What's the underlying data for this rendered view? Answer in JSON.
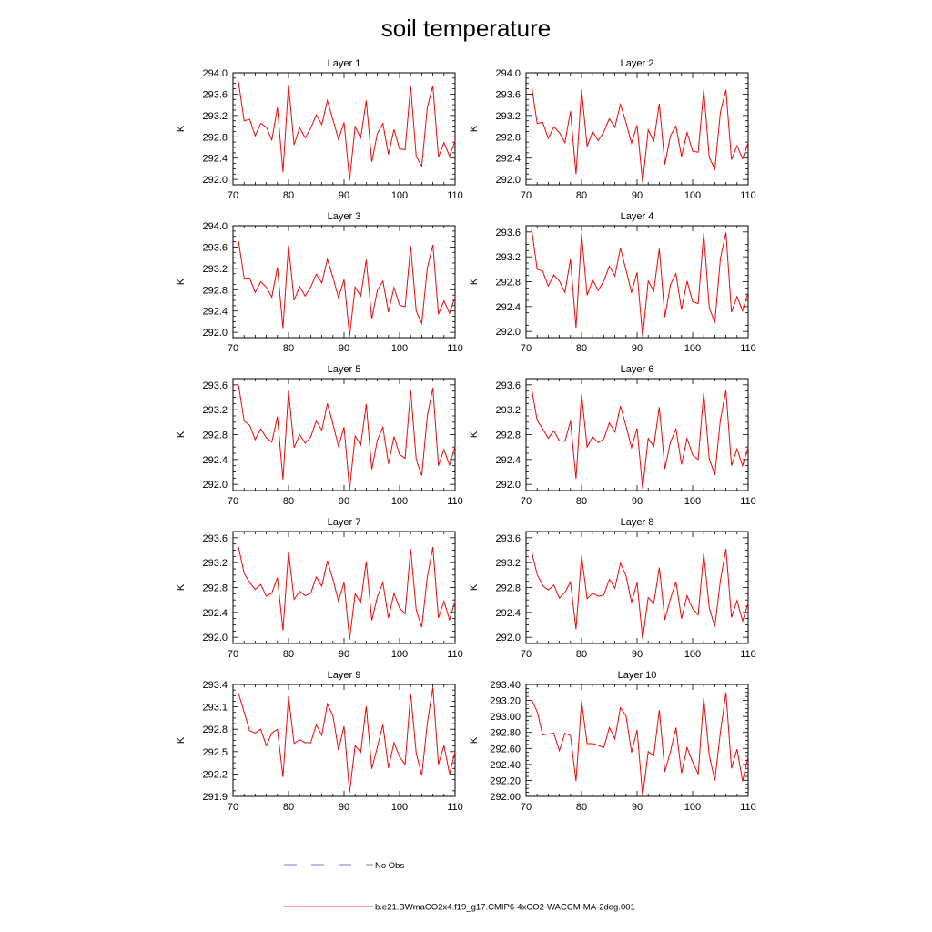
{
  "title": "soil temperature",
  "legend": {
    "placement": "bottom",
    "entries": [
      {
        "label": "No Obs",
        "color": "#7a7acc",
        "style": "dashed"
      },
      {
        "label": "b.e21.BWmaCO2x4.f19_g17.CMIP6-4xCO2-WACCM-MA-2deg.001",
        "color": "#ff0000",
        "style": "solid"
      }
    ]
  },
  "chart_data": [
    {
      "type": "line",
      "title": "Layer 1",
      "ylabel": "K",
      "xlim": [
        70,
        110
      ],
      "ylim": [
        291.9,
        294.0
      ],
      "xticks": [
        70,
        80,
        90,
        100,
        110
      ],
      "yticks": [
        292.0,
        292.4,
        292.8,
        293.2,
        293.6,
        294.0
      ],
      "ytick_decimals": 1,
      "x": [
        71,
        72,
        73,
        74,
        75,
        76,
        77,
        78,
        79,
        80,
        81,
        82,
        83,
        84,
        85,
        86,
        87,
        88,
        89,
        90,
        91,
        92,
        93,
        94,
        95,
        96,
        97,
        98,
        99,
        100,
        101,
        102,
        103,
        104,
        105,
        106,
        107,
        108,
        109,
        110
      ],
      "series": [
        {
          "name": "b.e21.BWmaCO2x4.f19_g17.CMIP6-4xCO2-WACCM-MA-2deg.001",
          "color": "#ff0000",
          "values": [
            293.82,
            293.1,
            293.13,
            292.82,
            293.05,
            292.98,
            292.74,
            293.35,
            292.14,
            293.78,
            292.65,
            292.97,
            292.78,
            292.96,
            293.21,
            293.03,
            293.48,
            293.12,
            292.75,
            293.07,
            291.98,
            292.99,
            292.78,
            293.48,
            292.33,
            292.86,
            293.05,
            292.47,
            292.94,
            292.57,
            292.56,
            293.76,
            292.43,
            292.25,
            293.35,
            293.76,
            292.42,
            292.69,
            292.44,
            292.72
          ]
        }
      ]
    },
    {
      "type": "line",
      "title": "Layer 2",
      "ylabel": "K",
      "xlim": [
        70,
        110
      ],
      "ylim": [
        291.9,
        294.0
      ],
      "xticks": [
        70,
        80,
        90,
        100,
        110
      ],
      "yticks": [
        292.0,
        292.4,
        292.8,
        293.2,
        293.6,
        294.0
      ],
      "ytick_decimals": 1,
      "x": [
        71,
        72,
        73,
        74,
        75,
        76,
        77,
        78,
        79,
        80,
        81,
        82,
        83,
        84,
        85,
        86,
        87,
        88,
        89,
        90,
        91,
        92,
        93,
        94,
        95,
        96,
        97,
        98,
        99,
        100,
        101,
        102,
        103,
        104,
        105,
        106,
        107,
        108,
        109,
        110
      ],
      "series": [
        {
          "name": "b.e21.BWmaCO2x4.f19_g17.CMIP6-4xCO2-WACCM-MA-2deg.001",
          "color": "#ff0000",
          "values": [
            293.76,
            293.05,
            293.07,
            292.77,
            292.99,
            292.88,
            292.69,
            293.28,
            292.1,
            293.69,
            292.62,
            292.9,
            292.73,
            292.89,
            293.14,
            292.98,
            293.41,
            293.07,
            292.68,
            293.02,
            291.94,
            292.93,
            292.72,
            293.42,
            292.28,
            292.82,
            293.0,
            292.43,
            292.88,
            292.53,
            292.51,
            293.68,
            292.41,
            292.19,
            293.26,
            293.68,
            292.37,
            292.63,
            292.39,
            292.69
          ]
        }
      ]
    },
    {
      "type": "line",
      "title": "Layer 3",
      "ylabel": "K",
      "xlim": [
        70,
        110
      ],
      "ylim": [
        291.9,
        294.0
      ],
      "xticks": [
        70,
        80,
        90,
        100,
        110
      ],
      "yticks": [
        292.0,
        292.4,
        292.8,
        293.2,
        293.6,
        294.0
      ],
      "ytick_decimals": 1,
      "x": [
        71,
        72,
        73,
        74,
        75,
        76,
        77,
        78,
        79,
        80,
        81,
        82,
        83,
        84,
        85,
        86,
        87,
        88,
        89,
        90,
        91,
        92,
        93,
        94,
        95,
        96,
        97,
        98,
        99,
        100,
        101,
        102,
        103,
        104,
        105,
        106,
        107,
        108,
        109,
        110
      ],
      "series": [
        {
          "name": "b.e21.BWmaCO2x4.f19_g17.CMIP6-4xCO2-WACCM-MA-2deg.001",
          "color": "#ff0000",
          "values": [
            293.71,
            293.02,
            293.02,
            292.75,
            292.95,
            292.85,
            292.66,
            293.22,
            292.08,
            293.63,
            292.6,
            292.86,
            292.68,
            292.85,
            293.09,
            292.93,
            293.37,
            293.03,
            292.65,
            292.99,
            291.92,
            292.85,
            292.68,
            293.36,
            292.25,
            292.79,
            292.96,
            292.38,
            292.84,
            292.51,
            292.48,
            293.62,
            292.4,
            292.17,
            293.21,
            293.64,
            292.34,
            292.59,
            292.36,
            292.66
          ]
        }
      ]
    },
    {
      "type": "line",
      "title": "Layer 4",
      "ylabel": "K",
      "xlim": [
        70,
        110
      ],
      "ylim": [
        291.9,
        293.7
      ],
      "xticks": [
        70,
        80,
        90,
        100,
        110
      ],
      "yticks": [
        292.0,
        292.4,
        292.8,
        293.2,
        293.6
      ],
      "ytick_decimals": 1,
      "x": [
        71,
        72,
        73,
        74,
        75,
        76,
        77,
        78,
        79,
        80,
        81,
        82,
        83,
        84,
        85,
        86,
        87,
        88,
        89,
        90,
        91,
        92,
        93,
        94,
        95,
        96,
        97,
        98,
        99,
        100,
        101,
        102,
        103,
        104,
        105,
        106,
        107,
        108,
        109,
        110
      ],
      "series": [
        {
          "name": "b.e21.BWmaCO2x4.f19_g17.CMIP6-4xCO2-WACCM-MA-2deg.001",
          "color": "#ff0000",
          "values": [
            293.65,
            293.0,
            292.97,
            292.73,
            292.91,
            292.81,
            292.63,
            293.16,
            292.06,
            293.57,
            292.58,
            292.83,
            292.66,
            292.81,
            293.05,
            292.89,
            293.34,
            292.99,
            292.63,
            292.95,
            291.91,
            292.81,
            292.65,
            293.33,
            292.23,
            292.75,
            292.93,
            292.35,
            292.81,
            292.48,
            292.45,
            293.58,
            292.38,
            292.14,
            293.17,
            293.59,
            292.31,
            292.56,
            292.33,
            292.63
          ]
        }
      ]
    },
    {
      "type": "line",
      "title": "Layer 5",
      "ylabel": "K",
      "xlim": [
        70,
        110
      ],
      "ylim": [
        291.9,
        293.7
      ],
      "xticks": [
        70,
        80,
        90,
        100,
        110
      ],
      "yticks": [
        292.0,
        292.4,
        292.8,
        293.2,
        293.6
      ],
      "ytick_decimals": 1,
      "x": [
        71,
        72,
        73,
        74,
        75,
        76,
        77,
        78,
        79,
        80,
        81,
        82,
        83,
        84,
        85,
        86,
        87,
        88,
        89,
        90,
        91,
        92,
        93,
        94,
        95,
        96,
        97,
        98,
        99,
        100,
        101,
        102,
        103,
        104,
        105,
        106,
        107,
        108,
        109,
        110
      ],
      "series": [
        {
          "name": "b.e21.BWmaCO2x4.f19_g17.CMIP6-4xCO2-WACCM-MA-2deg.001",
          "color": "#ff0000",
          "values": [
            293.6,
            293.02,
            292.95,
            292.72,
            292.89,
            292.75,
            292.68,
            293.09,
            292.08,
            293.51,
            292.59,
            292.8,
            292.66,
            292.76,
            293.02,
            292.87,
            293.3,
            292.97,
            292.61,
            292.92,
            291.91,
            292.78,
            292.63,
            293.29,
            292.24,
            292.71,
            292.92,
            292.33,
            292.77,
            292.48,
            292.42,
            293.52,
            292.4,
            292.14,
            293.1,
            293.55,
            292.3,
            292.56,
            292.31,
            292.61
          ]
        }
      ]
    },
    {
      "type": "line",
      "title": "Layer 6",
      "ylabel": "K",
      "xlim": [
        70,
        110
      ],
      "ylim": [
        291.9,
        293.7
      ],
      "xticks": [
        70,
        80,
        90,
        100,
        110
      ],
      "yticks": [
        292.0,
        292.4,
        292.8,
        293.2,
        293.6
      ],
      "ytick_decimals": 1,
      "x": [
        71,
        72,
        73,
        74,
        75,
        76,
        77,
        78,
        79,
        80,
        81,
        82,
        83,
        84,
        85,
        86,
        87,
        88,
        89,
        90,
        91,
        92,
        93,
        94,
        95,
        96,
        97,
        98,
        99,
        100,
        101,
        102,
        103,
        104,
        105,
        106,
        107,
        108,
        109,
        110
      ],
      "series": [
        {
          "name": "b.e21.BWmaCO2x4.f19_g17.CMIP6-4xCO2-WACCM-MA-2deg.001",
          "color": "#ff0000",
          "values": [
            293.54,
            293.03,
            292.89,
            292.74,
            292.86,
            292.7,
            292.69,
            293.02,
            292.09,
            293.45,
            292.6,
            292.77,
            292.67,
            292.73,
            292.99,
            292.84,
            293.26,
            292.94,
            292.59,
            292.9,
            291.93,
            292.74,
            292.61,
            293.24,
            292.25,
            292.68,
            292.89,
            292.32,
            292.74,
            292.47,
            292.4,
            293.47,
            292.41,
            292.15,
            293.04,
            293.51,
            292.3,
            292.57,
            292.3,
            292.6
          ]
        }
      ]
    },
    {
      "type": "line",
      "title": "Layer 7",
      "ylabel": "K",
      "xlim": [
        70,
        110
      ],
      "ylim": [
        291.9,
        293.7
      ],
      "xticks": [
        70,
        80,
        90,
        100,
        110
      ],
      "yticks": [
        292.0,
        292.4,
        292.8,
        293.2,
        293.6
      ],
      "ytick_decimals": 1,
      "x": [
        71,
        72,
        73,
        74,
        75,
        76,
        77,
        78,
        79,
        80,
        81,
        82,
        83,
        84,
        85,
        86,
        87,
        88,
        89,
        90,
        91,
        92,
        93,
        94,
        95,
        96,
        97,
        98,
        99,
        100,
        101,
        102,
        103,
        104,
        105,
        106,
        107,
        108,
        109,
        110
      ],
      "series": [
        {
          "name": "b.e21.BWmaCO2x4.f19_g17.CMIP6-4xCO2-WACCM-MA-2deg.001",
          "color": "#ff0000",
          "values": [
            293.45,
            293.03,
            292.88,
            292.77,
            292.85,
            292.66,
            292.71,
            292.96,
            292.11,
            293.38,
            292.61,
            292.74,
            292.67,
            292.71,
            292.97,
            292.82,
            293.23,
            292.93,
            292.58,
            292.88,
            291.96,
            292.7,
            292.56,
            293.22,
            292.27,
            292.65,
            292.88,
            292.31,
            292.71,
            292.47,
            292.38,
            293.42,
            292.44,
            292.16,
            292.97,
            293.45,
            292.31,
            292.58,
            292.28,
            292.58
          ]
        }
      ]
    },
    {
      "type": "line",
      "title": "Layer 8",
      "ylabel": "K",
      "xlim": [
        70,
        110
      ],
      "ylim": [
        291.9,
        293.7
      ],
      "xticks": [
        70,
        80,
        90,
        100,
        110
      ],
      "yticks": [
        292.0,
        292.4,
        292.8,
        293.2,
        293.6
      ],
      "ytick_decimals": 1,
      "x": [
        71,
        72,
        73,
        74,
        75,
        76,
        77,
        78,
        79,
        80,
        81,
        82,
        83,
        84,
        85,
        86,
        87,
        88,
        89,
        90,
        91,
        92,
        93,
        94,
        95,
        96,
        97,
        98,
        99,
        100,
        101,
        102,
        103,
        104,
        105,
        106,
        107,
        108,
        109,
        110
      ],
      "series": [
        {
          "name": "b.e21.BWmaCO2x4.f19_g17.CMIP6-4xCO2-WACCM-MA-2deg.001",
          "color": "#ff0000",
          "values": [
            293.38,
            293.01,
            292.83,
            292.76,
            292.84,
            292.63,
            292.72,
            292.89,
            292.13,
            293.31,
            292.62,
            292.71,
            292.66,
            292.68,
            292.93,
            292.79,
            293.19,
            292.99,
            292.56,
            292.88,
            291.97,
            292.64,
            292.54,
            293.12,
            292.28,
            292.62,
            292.89,
            292.3,
            292.67,
            292.46,
            292.36,
            293.35,
            292.47,
            292.17,
            292.91,
            293.42,
            292.32,
            292.59,
            292.26,
            292.55
          ]
        }
      ]
    },
    {
      "type": "line",
      "title": "Layer 9",
      "ylabel": "K",
      "xlim": [
        70,
        110
      ],
      "ylim": [
        291.9,
        293.4
      ],
      "xticks": [
        70,
        80,
        90,
        100,
        110
      ],
      "yticks": [
        291.9,
        292.2,
        292.5,
        292.8,
        293.1,
        293.4
      ],
      "ytick_decimals": 1,
      "x": [
        71,
        72,
        73,
        74,
        75,
        76,
        77,
        78,
        79,
        80,
        81,
        82,
        83,
        84,
        85,
        86,
        87,
        88,
        89,
        90,
        91,
        92,
        93,
        94,
        95,
        96,
        97,
        98,
        99,
        100,
        101,
        102,
        103,
        104,
        105,
        106,
        107,
        108,
        109,
        110
      ],
      "series": [
        {
          "name": "b.e21.BWmaCO2x4.f19_g17.CMIP6-4xCO2-WACCM-MA-2deg.001",
          "color": "#ff0000",
          "values": [
            293.28,
            293.03,
            292.78,
            292.75,
            292.8,
            292.58,
            292.75,
            292.8,
            292.16,
            293.24,
            292.61,
            292.66,
            292.62,
            292.62,
            292.86,
            292.72,
            293.14,
            292.98,
            292.52,
            292.84,
            291.95,
            292.58,
            292.49,
            293.11,
            292.27,
            292.56,
            292.86,
            292.28,
            292.62,
            292.43,
            292.33,
            293.28,
            292.48,
            292.18,
            292.88,
            293.36,
            292.33,
            292.58,
            292.2,
            292.5
          ]
        }
      ]
    },
    {
      "type": "line",
      "title": "Layer 10",
      "ylabel": "K",
      "xlim": [
        70,
        110
      ],
      "ylim": [
        292.0,
        293.4
      ],
      "xticks": [
        70,
        80,
        90,
        100,
        110
      ],
      "yticks": [
        292.0,
        292.2,
        292.4,
        292.6,
        292.8,
        293.0,
        293.2,
        293.4
      ],
      "ytick_decimals": 2,
      "x": [
        71,
        72,
        73,
        74,
        75,
        76,
        77,
        78,
        79,
        80,
        81,
        82,
        83,
        84,
        85,
        86,
        87,
        88,
        89,
        90,
        91,
        92,
        93,
        94,
        95,
        96,
        97,
        98,
        99,
        100,
        101,
        102,
        103,
        104,
        105,
        106,
        107,
        108,
        109,
        110
      ],
      "series": [
        {
          "name": "b.e21.BWmaCO2x4.f19_g17.CMIP6-4xCO2-WACCM-MA-2deg.001",
          "color": "#ff0000",
          "values": [
            293.21,
            293.06,
            292.77,
            292.78,
            292.79,
            292.57,
            292.79,
            292.76,
            292.19,
            293.19,
            292.66,
            292.66,
            292.64,
            292.61,
            292.86,
            292.72,
            293.11,
            293.01,
            292.55,
            292.83,
            292.0,
            292.56,
            292.51,
            293.08,
            292.31,
            292.56,
            292.86,
            292.29,
            292.61,
            292.43,
            292.28,
            293.23,
            292.51,
            292.2,
            292.8,
            293.3,
            292.35,
            292.59,
            292.19,
            292.5
          ]
        }
      ]
    }
  ]
}
